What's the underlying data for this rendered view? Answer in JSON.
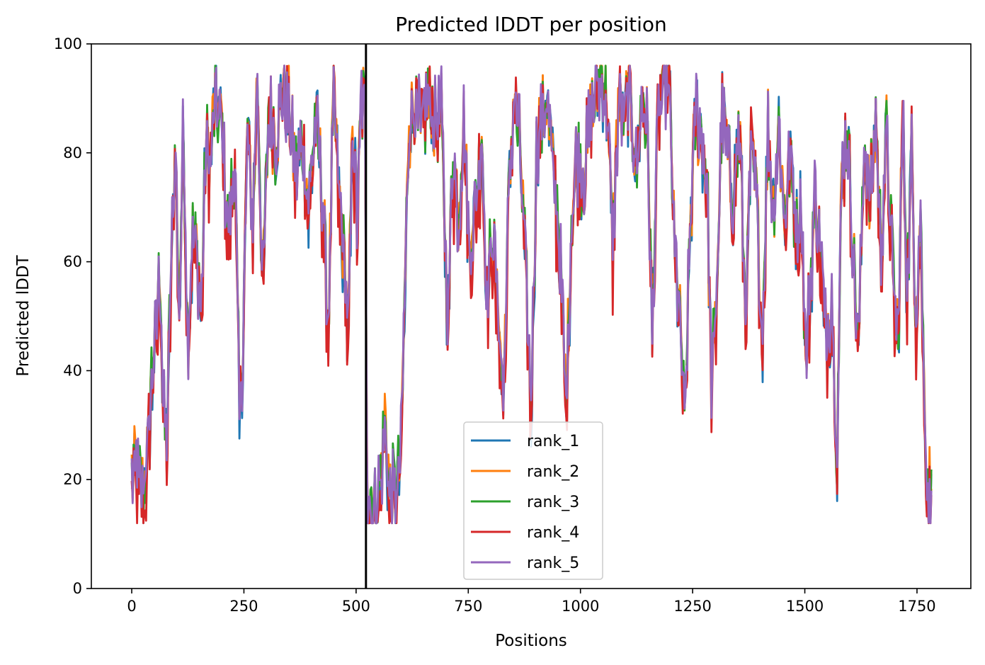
{
  "chart_data": {
    "type": "line",
    "title": "Predicted lDDT per position",
    "xlabel": "Positions",
    "ylabel": "Predicted lDDT",
    "xlim": [
      -90,
      1870
    ],
    "ylim": [
      0,
      100
    ],
    "xticks": [
      0,
      250,
      500,
      750,
      1000,
      1250,
      1500,
      1750
    ],
    "yticks": [
      0,
      20,
      40,
      60,
      80,
      100
    ],
    "grid": false,
    "legend_position": "lower-center",
    "chain_break_x": 522,
    "x_range": [
      0,
      1783
    ],
    "series": [
      {
        "name": "rank_1",
        "color": "#1f77b4"
      },
      {
        "name": "rank_2",
        "color": "#ff7f0e"
      },
      {
        "name": "rank_3",
        "color": "#2ca02c"
      },
      {
        "name": "rank_4",
        "color": "#d62728"
      },
      {
        "name": "rank_5",
        "color": "#9467bd"
      }
    ],
    "profile": [
      [
        0,
        20
      ],
      [
        8,
        23
      ],
      [
        15,
        20
      ],
      [
        25,
        17
      ],
      [
        35,
        26
      ],
      [
        45,
        40
      ],
      [
        55,
        47
      ],
      [
        62,
        60
      ],
      [
        70,
        35
      ],
      [
        78,
        27
      ],
      [
        88,
        60
      ],
      [
        98,
        82
      ],
      [
        105,
        48
      ],
      [
        115,
        85
      ],
      [
        125,
        45
      ],
      [
        135,
        65
      ],
      [
        145,
        62
      ],
      [
        155,
        50
      ],
      [
        165,
        82
      ],
      [
        175,
        78
      ],
      [
        185,
        90
      ],
      [
        200,
        85
      ],
      [
        215,
        65
      ],
      [
        230,
        80
      ],
      [
        240,
        32
      ],
      [
        248,
        45
      ],
      [
        258,
        84
      ],
      [
        270,
        68
      ],
      [
        280,
        93
      ],
      [
        292,
        55
      ],
      [
        305,
        88
      ],
      [
        320,
        82
      ],
      [
        335,
        92
      ],
      [
        350,
        88
      ],
      [
        365,
        76
      ],
      [
        380,
        82
      ],
      [
        395,
        70
      ],
      [
        410,
        87
      ],
      [
        425,
        72
      ],
      [
        438,
        48
      ],
      [
        450,
        90
      ],
      [
        462,
        72
      ],
      [
        474,
        60
      ],
      [
        483,
        46
      ],
      [
        492,
        85
      ],
      [
        502,
        68
      ],
      [
        512,
        90
      ],
      [
        520,
        88
      ],
      [
        525,
        16
      ],
      [
        540,
        15
      ],
      [
        555,
        20
      ],
      [
        565,
        32
      ],
      [
        575,
        17
      ],
      [
        590,
        18
      ],
      [
        600,
        25
      ],
      [
        610,
        60
      ],
      [
        618,
        85
      ],
      [
        630,
        88
      ],
      [
        645,
        84
      ],
      [
        660,
        90
      ],
      [
        675,
        85
      ],
      [
        690,
        88
      ],
      [
        705,
        48
      ],
      [
        715,
        80
      ],
      [
        728,
        68
      ],
      [
        740,
        85
      ],
      [
        752,
        62
      ],
      [
        765,
        70
      ],
      [
        780,
        82
      ],
      [
        792,
        55
      ],
      [
        805,
        65
      ],
      [
        818,
        50
      ],
      [
        828,
        35
      ],
      [
        840,
        70
      ],
      [
        852,
        90
      ],
      [
        865,
        82
      ],
      [
        878,
        58
      ],
      [
        890,
        32
      ],
      [
        902,
        80
      ],
      [
        912,
        86
      ],
      [
        925,
        90
      ],
      [
        935,
        80
      ],
      [
        948,
        70
      ],
      [
        958,
        55
      ],
      [
        968,
        33
      ],
      [
        980,
        68
      ],
      [
        992,
        80
      ],
      [
        1005,
        75
      ],
      [
        1020,
        85
      ],
      [
        1035,
        92
      ],
      [
        1048,
        94
      ],
      [
        1060,
        88
      ],
      [
        1072,
        62
      ],
      [
        1085,
        90
      ],
      [
        1098,
        85
      ],
      [
        1110,
        92
      ],
      [
        1125,
        76
      ],
      [
        1138,
        90
      ],
      [
        1150,
        82
      ],
      [
        1160,
        48
      ],
      [
        1172,
        85
      ],
      [
        1185,
        94
      ],
      [
        1198,
        92
      ],
      [
        1210,
        62
      ],
      [
        1222,
        50
      ],
      [
        1232,
        30
      ],
      [
        1245,
        68
      ],
      [
        1258,
        88
      ],
      [
        1270,
        82
      ],
      [
        1282,
        76
      ],
      [
        1292,
        38
      ],
      [
        1302,
        50
      ],
      [
        1315,
        88
      ],
      [
        1328,
        80
      ],
      [
        1340,
        72
      ],
      [
        1355,
        85
      ],
      [
        1368,
        50
      ],
      [
        1380,
        80
      ],
      [
        1392,
        72
      ],
      [
        1405,
        46
      ],
      [
        1418,
        84
      ],
      [
        1430,
        70
      ],
      [
        1442,
        85
      ],
      [
        1455,
        68
      ],
      [
        1468,
        80
      ],
      [
        1480,
        66
      ],
      [
        1492,
        72
      ],
      [
        1502,
        42
      ],
      [
        1512,
        55
      ],
      [
        1522,
        72
      ],
      [
        1535,
        62
      ],
      [
        1548,
        45
      ],
      [
        1560,
        55
      ],
      [
        1572,
        25
      ],
      [
        1582,
        75
      ],
      [
        1595,
        85
      ],
      [
        1608,
        60
      ],
      [
        1620,
        45
      ],
      [
        1632,
        82
      ],
      [
        1645,
        70
      ],
      [
        1658,
        86
      ],
      [
        1670,
        62
      ],
      [
        1682,
        84
      ],
      [
        1695,
        60
      ],
      [
        1708,
        45
      ],
      [
        1718,
        88
      ],
      [
        1728,
        55
      ],
      [
        1738,
        80
      ],
      [
        1748,
        50
      ],
      [
        1758,
        70
      ],
      [
        1766,
        36
      ],
      [
        1772,
        22
      ],
      [
        1778,
        18
      ],
      [
        1783,
        16
      ]
    ]
  }
}
